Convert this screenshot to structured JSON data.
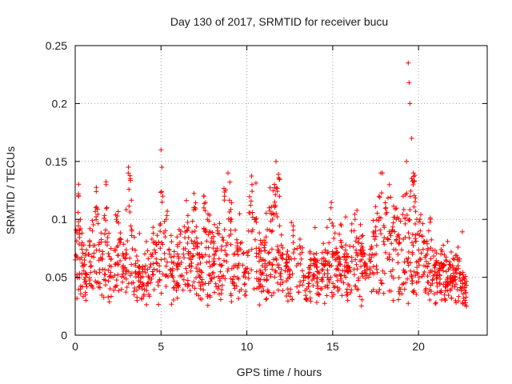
{
  "chart_data": {
    "type": "scatter",
    "title": "Day 130 of 2017, SRMTID for receiver bucu",
    "xlabel": "GPS time / hours",
    "ylabel": "SRMTID / TECUs",
    "xlim": [
      0,
      24
    ],
    "ylim": [
      0,
      0.25
    ],
    "xticks": [
      0,
      5,
      10,
      15,
      20
    ],
    "xtick_labels": [
      "0",
      "5",
      "10",
      "15",
      "20"
    ],
    "yticks": [
      0,
      0.05,
      0.1,
      0.15,
      0.2,
      0.25
    ],
    "ytick_labels": [
      "0",
      "0.05",
      "0.1",
      "0.15",
      "0.2",
      "0.25"
    ],
    "grid": true,
    "marker": "+",
    "color": "#ff0000",
    "x_range_hours": [
      0,
      22.8
    ],
    "series": [
      {
        "name": "SRMTID",
        "x": [
          0.0,
          0.1,
          0.2,
          0.3,
          0.4,
          0.5,
          0.6,
          0.8,
          1.0,
          1.2,
          1.4,
          1.6,
          1.8,
          2.0,
          2.2,
          2.4,
          2.6,
          2.8,
          3.0,
          3.1,
          3.2,
          3.3,
          3.5,
          3.7,
          3.9,
          4.1,
          4.3,
          4.5,
          4.7,
          4.9,
          5.0,
          5.05,
          5.1,
          5.3,
          5.5,
          5.7,
          5.9,
          6.1,
          6.3,
          6.5,
          6.7,
          6.9,
          7.1,
          7.3,
          7.5,
          7.7,
          7.9,
          8.1,
          8.3,
          8.5,
          8.7,
          8.9,
          9.1,
          9.3,
          9.5,
          9.7,
          9.9,
          10.1,
          10.3,
          10.5,
          10.7,
          10.9,
          11.1,
          11.3,
          11.5,
          11.7,
          11.9,
          12.1,
          12.3,
          12.5,
          12.7,
          12.9,
          13.1,
          13.3,
          13.5,
          13.7,
          13.9,
          14.1,
          14.3,
          14.5,
          14.7,
          14.9,
          15.1,
          15.3,
          15.5,
          15.7,
          15.9,
          16.1,
          16.3,
          16.5,
          16.7,
          16.9,
          17.1,
          17.3,
          17.5,
          17.7,
          17.9,
          18.1,
          18.3,
          18.5,
          18.7,
          18.9,
          19.1,
          19.3,
          19.4,
          19.45,
          19.5,
          19.6,
          19.7,
          19.9,
          20.1,
          20.3,
          20.5,
          20.7,
          20.9,
          21.1,
          21.3,
          21.5,
          21.7,
          21.9,
          22.1,
          22.3,
          22.5,
          22.7,
          22.8
        ],
        "y": [
          0.065,
          0.09,
          0.12,
          0.1,
          0.08,
          0.06,
          0.05,
          0.07,
          0.09,
          0.11,
          0.08,
          0.07,
          0.13,
          0.06,
          0.05,
          0.1,
          0.08,
          0.06,
          0.07,
          0.145,
          0.135,
          0.09,
          0.06,
          0.05,
          0.04,
          0.06,
          0.05,
          0.07,
          0.08,
          0.06,
          0.16,
          0.145,
          0.12,
          0.1,
          0.07,
          0.05,
          0.06,
          0.08,
          0.07,
          0.09,
          0.06,
          0.11,
          0.08,
          0.05,
          0.12,
          0.1,
          0.08,
          0.07,
          0.09,
          0.06,
          0.12,
          0.14,
          0.1,
          0.07,
          0.06,
          0.08,
          0.05,
          0.09,
          0.13,
          0.1,
          0.07,
          0.06,
          0.08,
          0.11,
          0.09,
          0.15,
          0.12,
          0.07,
          0.06,
          0.05,
          0.08,
          0.06,
          0.07,
          0.05,
          0.04,
          0.06,
          0.07,
          0.05,
          0.04,
          0.06,
          0.05,
          0.11,
          0.07,
          0.06,
          0.08,
          0.07,
          0.06,
          0.09,
          0.1,
          0.08,
          0.07,
          0.06,
          0.05,
          0.07,
          0.09,
          0.12,
          0.14,
          0.11,
          0.13,
          0.09,
          0.1,
          0.08,
          0.12,
          0.15,
          0.235,
          0.218,
          0.2,
          0.17,
          0.14,
          0.1,
          0.09,
          0.08,
          0.07,
          0.1,
          0.06,
          0.05,
          0.07,
          0.06,
          0.05,
          0.04,
          0.05,
          0.06,
          0.04,
          0.03,
          0.025
        ]
      }
    ]
  }
}
